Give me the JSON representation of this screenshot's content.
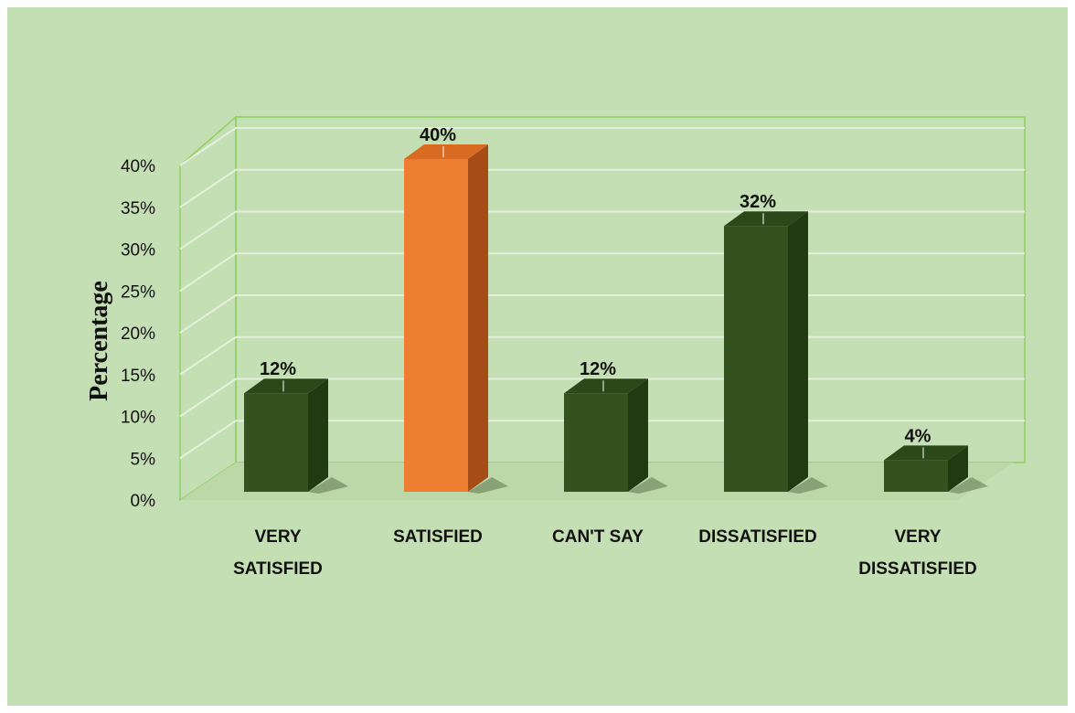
{
  "chart_data": {
    "type": "bar",
    "title": "",
    "xlabel": "",
    "ylabel": "Percentage",
    "ylim": [
      0,
      40
    ],
    "yticks": [
      "0%",
      "5%",
      "10%",
      "15%",
      "20%",
      "25%",
      "30%",
      "35%",
      "40%"
    ],
    "categories": [
      [
        "VERY",
        "SATISFIED"
      ],
      [
        "SATISFIED"
      ],
      [
        "CAN'T SAY"
      ],
      [
        "DISSATISFIED"
      ],
      [
        "VERY",
        "DISSATISFIED"
      ]
    ],
    "values": [
      12,
      40,
      12,
      32,
      4
    ],
    "value_labels": [
      "12%",
      "40%",
      "12%",
      "32%",
      "4%"
    ],
    "highlight_index": 1,
    "grid": true,
    "legend": "none",
    "colors": {
      "background": "#c5dfb4",
      "bar_front": "#33521e",
      "bar_top": "#2b4818",
      "bar_side": "#223a12",
      "highlight_front": "#ed7d31",
      "highlight_top": "#d86a22",
      "highlight_side": "#a54c17",
      "gridline": "#e4efdc",
      "frame": "#8fd060",
      "text": "#111111"
    }
  }
}
